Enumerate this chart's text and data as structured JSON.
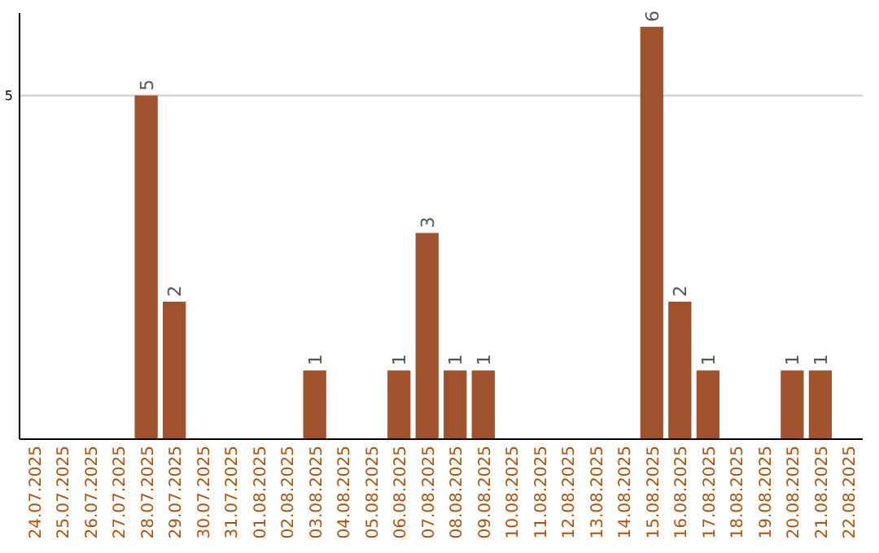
{
  "chart_data": {
    "type": "bar",
    "categories": [
      "24.07.2025",
      "25.07.2025",
      "26.07.2025",
      "27.07.2025",
      "28.07.2025",
      "29.07.2025",
      "30.07.2025",
      "31.07.2025",
      "01.08.2025",
      "02.08.2025",
      "03.08.2025",
      "04.08.2025",
      "05.08.2025",
      "06.08.2025",
      "07.08.2025",
      "08.08.2025",
      "09.08.2025",
      "10.08.2025",
      "11.08.2025",
      "12.08.2025",
      "13.08.2025",
      "14.08.2025",
      "15.08.2025",
      "16.08.2025",
      "17.08.2025",
      "18.08.2025",
      "19.08.2025",
      "20.08.2025",
      "21.08.2025",
      "22.08.2025"
    ],
    "values": [
      0,
      0,
      0,
      0,
      5,
      2,
      0,
      0,
      0,
      0,
      1,
      0,
      0,
      1,
      3,
      1,
      1,
      0,
      0,
      0,
      0,
      0,
      6,
      2,
      1,
      0,
      0,
      1,
      1,
      0
    ],
    "value_labels": [
      null,
      null,
      null,
      null,
      "5",
      "2",
      null,
      null,
      null,
      null,
      "1",
      null,
      null,
      "1",
      "3",
      "1",
      "1",
      null,
      null,
      null,
      null,
      null,
      "6",
      "2",
      "1",
      null,
      null,
      "1",
      "1",
      null
    ],
    "color": "#a0522d",
    "ylim": [
      0,
      6.2
    ],
    "yticks": [
      5
    ],
    "grid": "y"
  }
}
